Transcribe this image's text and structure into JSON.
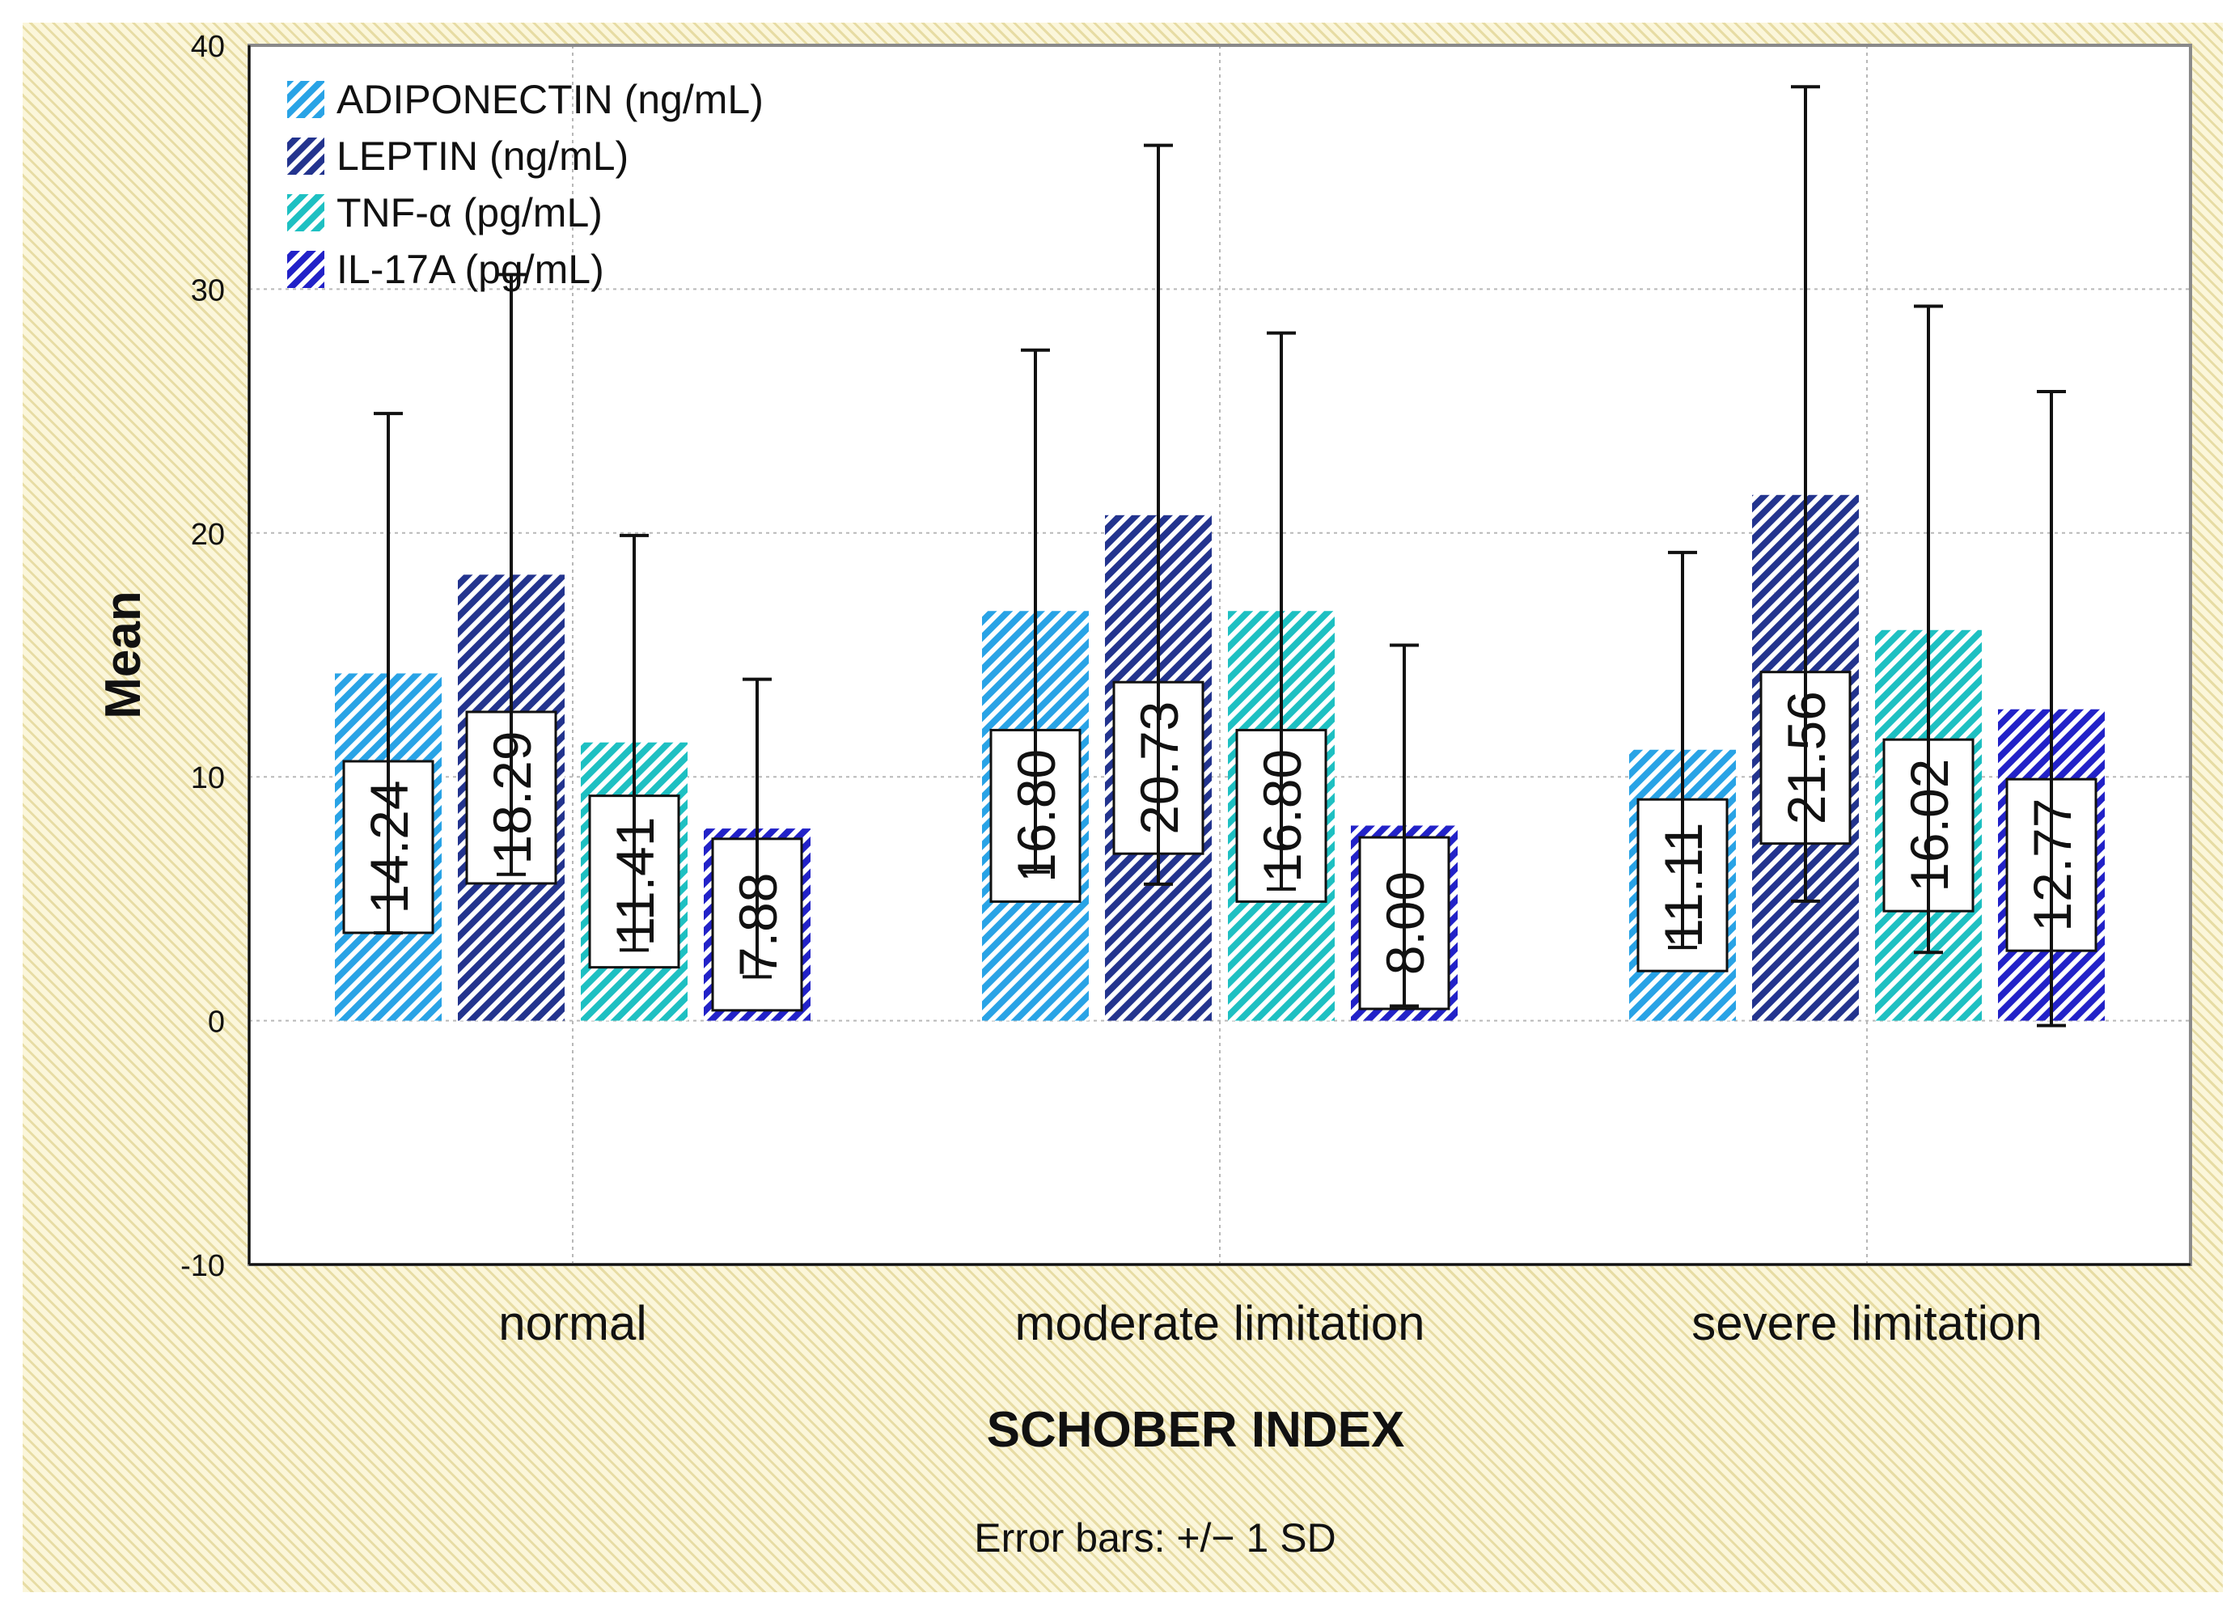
{
  "chart_data": {
    "type": "bar",
    "title": "",
    "xlabel": "SCHOBER INDEX",
    "ylabel": "Mean",
    "note": "Error bars: +/− 1 SD",
    "categories": [
      "normal",
      "moderate limitation",
      "severe limitation"
    ],
    "ylim": [
      -10,
      40
    ],
    "yticks": [
      -10,
      0,
      10,
      20,
      30,
      40
    ],
    "grid": true,
    "legend_position": "top-left",
    "series": [
      {
        "name": "ADIPONECTIN (ng/mL)",
        "color": "#29a3e6",
        "values": [
          14.24,
          16.8,
          11.11
        ],
        "labels": [
          "14.24",
          "16.80",
          "11.11"
        ],
        "error_upper": [
          24.9,
          27.5,
          19.2
        ],
        "error_lower": [
          3.6,
          6.1,
          3.0
        ]
      },
      {
        "name": "LEPTIN (ng/mL)",
        "color": "#23348e",
        "values": [
          18.29,
          20.73,
          21.56
        ],
        "labels": [
          "18.29",
          "20.73",
          "21.56"
        ],
        "error_upper": [
          30.6,
          35.9,
          38.3
        ],
        "error_lower": [
          6.0,
          5.6,
          4.9
        ]
      },
      {
        "name": "TNF-α (pg/mL)",
        "color": "#1ec0c2",
        "values": [
          11.41,
          16.8,
          16.02
        ],
        "labels": [
          "11.41",
          "16.80",
          "16.02"
        ],
        "error_upper": [
          19.9,
          28.2,
          29.3
        ],
        "error_lower": [
          2.9,
          5.4,
          2.8
        ]
      },
      {
        "name": "IL-17A (pg/mL)",
        "color": "#2222c8",
        "values": [
          7.88,
          8.0,
          12.77
        ],
        "labels": [
          "7.88",
          "8.00",
          "12.77"
        ],
        "error_upper": [
          14.0,
          15.4,
          25.8
        ],
        "error_lower": [
          1.8,
          0.6,
          -0.2
        ]
      }
    ]
  }
}
